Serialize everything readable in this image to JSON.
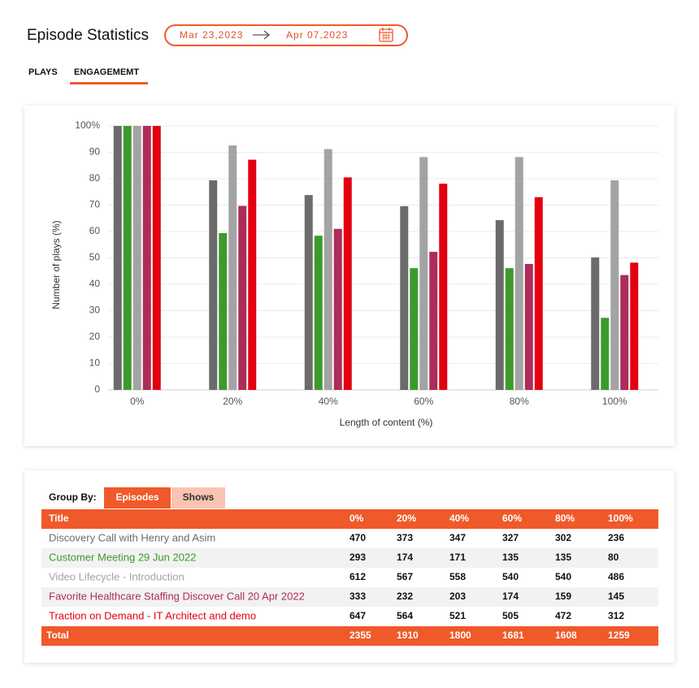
{
  "header": {
    "title": "Episode Statistics",
    "date_from": "Mar 23,2023",
    "date_to": "Apr 07,2023"
  },
  "tabs": [
    "PLAYS",
    "ENGAGEMEMT"
  ],
  "chart_data": {
    "type": "bar",
    "y_label": "Number of plays (%)",
    "x_label": "Length of content (%)",
    "categories": [
      "0%",
      "20%",
      "40%",
      "60%",
      "80%",
      "100%"
    ],
    "series": [
      {
        "color": "#6b6b6b",
        "values": [
          100,
          79.4,
          73.8,
          69.6,
          64.3,
          50.2
        ]
      },
      {
        "color": "#3c9a2c",
        "values": [
          100,
          59.4,
          58.4,
          46.1,
          46.1,
          27.3
        ]
      },
      {
        "color": "#a3a3a3",
        "values": [
          100,
          92.6,
          91.2,
          88.2,
          88.2,
          79.4
        ]
      },
      {
        "color": "#ad2c5a",
        "values": [
          100,
          69.7,
          61,
          52.3,
          47.7,
          43.5
        ]
      },
      {
        "color": "#e3000f",
        "values": [
          100,
          87.2,
          80.5,
          78.1,
          73,
          48.2
        ]
      }
    ],
    "ylim": [
      0,
      100
    ],
    "yticks": [
      0,
      10,
      20,
      30,
      40,
      50,
      60,
      70,
      80,
      90,
      {
        "value": 100,
        "label": "100%"
      }
    ],
    "grid": true
  },
  "table": {
    "group_by": "Group By:",
    "group_tabs": [
      "Episodes",
      "Shows"
    ],
    "columns": [
      "Title",
      "0%",
      "20%",
      "40%",
      "60%",
      "80%",
      "100%"
    ],
    "rows": [
      [
        "Discovery Call with Henry and Asim",
        470,
        373,
        347,
        327,
        302,
        236
      ],
      [
        "Customer Meeting 29 Jun 2022",
        293,
        174,
        171,
        135,
        135,
        80
      ],
      [
        "Video Lifecycle - Introduction",
        612,
        567,
        558,
        540,
        540,
        486
      ],
      [
        "Favorite Healthcare Staffing Discover Call 20 Apr 2022",
        333,
        232,
        203,
        174,
        159,
        145
      ],
      [
        "Traction on Demand - IT Architect and demo",
        647,
        564,
        521,
        505,
        472,
        312
      ]
    ],
    "total": [
      "Total",
      2355,
      1910,
      1800,
      1681,
      1608,
      1259
    ]
  }
}
